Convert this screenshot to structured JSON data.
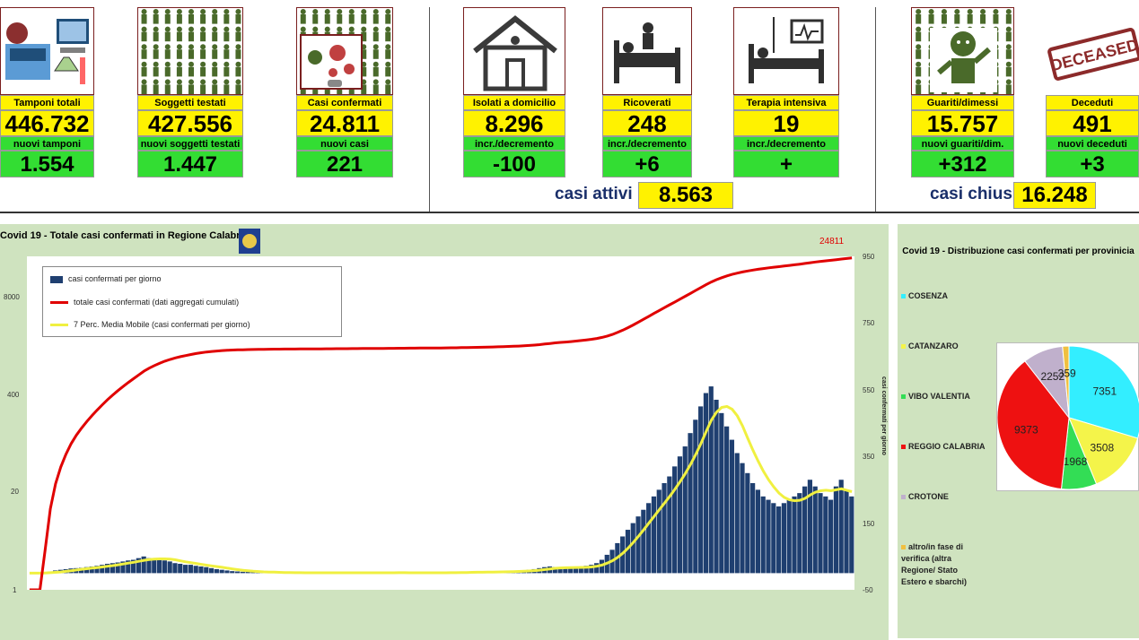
{
  "top_cards": [
    {
      "icon": "lab-test-icon",
      "label": "Tamponi totali",
      "value": "446.732",
      "sublabel": "nuovi tamponi",
      "subvalue": "1.554"
    },
    {
      "icon": "people-grid-icon",
      "label": "Soggetti testati",
      "value": "427.556",
      "sublabel": "nuovi soggetti testati",
      "subvalue": "1.447"
    },
    {
      "icon": "virus-people-icon",
      "label": "Casi confermati",
      "value": "24.811",
      "sublabel": "nuovi casi",
      "subvalue": "221"
    },
    {
      "icon": "house-icon",
      "label": "Isolati a domicilio",
      "value": "8.296",
      "sublabel": "incr./decremento",
      "subvalue": "-100"
    },
    {
      "icon": "hospital-bed-icon",
      "label": "Ricoverati",
      "value": "248",
      "sublabel": "incr./decremento",
      "subvalue": "+6"
    },
    {
      "icon": "icu-bed-icon",
      "label": "Terapia intensiva",
      "value": "19",
      "sublabel": "incr./decremento",
      "subvalue": "+"
    },
    {
      "icon": "recovered-person-icon",
      "label": "Guariti/dimessi",
      "value": "15.757",
      "sublabel": "nuovi guariti/dim.",
      "subvalue": "+312"
    },
    {
      "icon": "deceased-stamp-icon",
      "label": "Deceduti",
      "value": "491",
      "sublabel": "nuovi deceduti",
      "subvalue": "+3"
    }
  ],
  "deceased_stamp_text": "DECEASED",
  "summary": {
    "active_label": "casi attivi",
    "active_value": "8.563",
    "closed_label": "casi chiusi",
    "closed_value": "16.248"
  },
  "colors": {
    "yellow": "#fff200",
    "green": "#33dd33",
    "bars": "#1f3f70",
    "cumulative": "#e00000",
    "moving_avg": "#f0f040"
  },
  "chart_data": [
    {
      "type": "bar",
      "title": "Covid 19 - Totale casi confermati in Regione Calabria",
      "left_axis_ticks": [
        "8000",
        "400",
        "20",
        "1"
      ],
      "left_axis_scale": "log",
      "right_axis_label": "casi confermati per giorno",
      "right_axis_ticks": [
        "950",
        "750",
        "550",
        "350",
        "150",
        "-50"
      ],
      "right_ylim": [
        -50,
        950
      ],
      "annotation": "24811",
      "legend": [
        "casi confermati per giorno",
        "totale casi confermati (dati aggregati cumulati)",
        "7 Perc. Media Mobile (casi confermati per giorno)"
      ],
      "legend_position": "top-left",
      "series_daily_approx": [
        0,
        0,
        0,
        2,
        5,
        8,
        10,
        12,
        14,
        15,
        16,
        18,
        20,
        22,
        25,
        28,
        30,
        32,
        35,
        38,
        40,
        45,
        50,
        45,
        42,
        40,
        38,
        35,
        30,
        28,
        25,
        25,
        22,
        20,
        18,
        15,
        12,
        10,
        8,
        6,
        5,
        4,
        4,
        3,
        3,
        2,
        2,
        2,
        1,
        1,
        1,
        1,
        1,
        1,
        1,
        1,
        1,
        1,
        1,
        1,
        1,
        1,
        1,
        1,
        1,
        1,
        2,
        1,
        1,
        1,
        1,
        2,
        1,
        1,
        1,
        1,
        1,
        1,
        1,
        1,
        2,
        2,
        2,
        3,
        3,
        3,
        3,
        3,
        4,
        4,
        5,
        5,
        5,
        6,
        6,
        8,
        10,
        12,
        15,
        18,
        20,
        18,
        16,
        14,
        15,
        18,
        20,
        22,
        25,
        30,
        40,
        55,
        70,
        90,
        110,
        130,
        150,
        170,
        190,
        210,
        230,
        250,
        270,
        290,
        320,
        350,
        380,
        420,
        460,
        500,
        540,
        560,
        520,
        480,
        440,
        400,
        360,
        330,
        300,
        270,
        250,
        230,
        220,
        210,
        200,
        210,
        220,
        230,
        240,
        260,
        280,
        260,
        240,
        230,
        220,
        260,
        280,
        250,
        230
      ],
      "series_cumulative_end": 24811
    },
    {
      "type": "pie",
      "title": "Covid 19 - Distribuzione casi confermati per provinicia",
      "labels": [
        "COSENZA",
        "CATANZARO",
        "VIBO VALENTIA",
        "REGGIO CALABRIA",
        "CROTONE",
        "altro/in fase di verifica (altra Regione/ Stato Estero e sbarchi)"
      ],
      "values": [
        7351,
        3508,
        1968,
        9373,
        2252,
        359
      ],
      "colors": [
        "#33eeff",
        "#f4f44a",
        "#33dd55",
        "#ee1111",
        "#c0b0cc",
        "#f0c040"
      ]
    }
  ]
}
